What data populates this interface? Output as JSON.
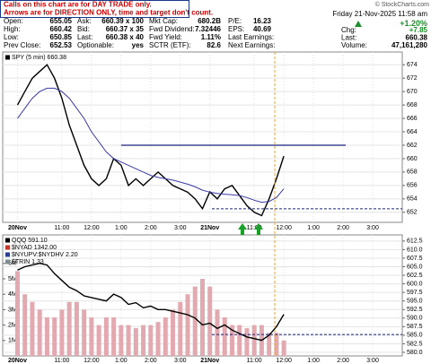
{
  "notice": [
    "Calls on this chart are for DAY TRADE only.",
    "Arrows are for DIRECTION ONLY, time and target don't count."
  ],
  "watermark": "© StockCharts.com",
  "quote": {
    "columns": [
      [
        [
          "Open:",
          "655.05"
        ],
        [
          "High:",
          "660.42"
        ],
        [
          "Low:",
          "650.85"
        ],
        [
          "Prev Close:",
          "652.53"
        ]
      ],
      [
        [
          "Ask:",
          "660.39 x 100"
        ],
        [
          "Bid:",
          "660.37 x 35"
        ],
        [
          "Last:",
          "660.38 x 40"
        ],
        [
          "Optionable:",
          "yes"
        ]
      ],
      [
        [
          "Mkt Cap:",
          "680.2B"
        ],
        [
          "Fwd Dividend:",
          "7.32446"
        ],
        [
          "Fwd Yield:",
          "1.11%"
        ],
        [
          "SCTR (ETF):",
          "82.6"
        ]
      ],
      [
        [
          "P/E:",
          "16.23"
        ],
        [
          "EPS:",
          "40.69"
        ],
        [
          "Last Earnings:"
        ],
        [
          "Next Earnings:"
        ]
      ]
    ],
    "date": "Friday 21-Nov-2025 11:58 am",
    "change_pct": "+1.20%",
    "summary": [
      [
        "Chg:",
        "+7.85"
      ],
      [
        "Last:",
        "660.38"
      ],
      [
        "Volume:",
        "47,161,280"
      ]
    ]
  },
  "chart_data": [
    {
      "type": "line",
      "xlim": [
        -2,
        52
      ],
      "xticks": [
        {
          "value": 0,
          "label": "20Nov"
        },
        {
          "value": 6,
          "label": "11:00"
        },
        {
          "value": 10,
          "label": "12:00"
        },
        {
          "value": 14,
          "label": "1:00"
        },
        {
          "value": 18,
          "label": "2:00"
        },
        {
          "value": 22,
          "label": "3:00"
        },
        {
          "value": 26,
          "label": "21Nov"
        },
        {
          "value": 32,
          "label": "11:00"
        },
        {
          "value": 36,
          "label": "12:00"
        },
        {
          "value": 40,
          "label": "1:00"
        },
        {
          "value": 44,
          "label": "2:00"
        },
        {
          "value": 48,
          "label": "3:00"
        }
      ],
      "ylim": [
        650.5,
        675.9
      ],
      "yticks": [
        652,
        654,
        656,
        658,
        660,
        662,
        664,
        666,
        668,
        670,
        672,
        674
      ],
      "grid": true,
      "hlines": [
        662,
        652.53
      ],
      "series": [
        {
          "name": "SPY (5 min) 660.38",
          "color": "#000000",
          "values": [
            668,
            670,
            672,
            673,
            674,
            672,
            669,
            665,
            662,
            659,
            657,
            656,
            657,
            660,
            659,
            656,
            657,
            656,
            657,
            658,
            657,
            656,
            655.5,
            655,
            654,
            652.53,
            655.05,
            654,
            655.5,
            656,
            654.5,
            653,
            652,
            651.5,
            654,
            657,
            660.38
          ]
        },
        {
          "color": "#3b3ba8",
          "values": [
            666,
            667.5,
            669,
            670,
            670.5,
            670.5,
            670,
            669,
            667.5,
            666,
            664,
            662.5,
            661,
            660,
            659.5,
            659,
            658.5,
            658,
            657.5,
            657.2,
            657,
            656.8,
            656.5,
            656.2,
            655.8,
            655.3,
            655,
            654.8,
            654.7,
            654.6,
            654.5,
            654.2,
            653.8,
            653.5,
            653.6,
            654.2,
            655.5
          ]
        }
      ]
    },
    {
      "type": "line",
      "xlim": [
        -2,
        52
      ],
      "xticks": [
        {
          "value": 0,
          "label": "20Nov"
        },
        {
          "value": 6,
          "label": "11:00"
        },
        {
          "value": 10,
          "label": "12:00"
        },
        {
          "value": 14,
          "label": "1:00"
        },
        {
          "value": 18,
          "label": "2:00"
        },
        {
          "value": 22,
          "label": "3:00"
        },
        {
          "value": 26,
          "label": "21Nov"
        },
        {
          "value": 32,
          "label": "11:00"
        },
        {
          "value": 36,
          "label": "12:00"
        },
        {
          "value": 40,
          "label": "1:00"
        },
        {
          "value": 44,
          "label": "2:00"
        },
        {
          "value": 48,
          "label": "3:00"
        }
      ],
      "ylim": [
        578.95,
        614.3
      ],
      "yticks": [
        {
          "value": 580,
          "label": "580.0"
        },
        582.5,
        {
          "value": 585,
          "label": "585.0"
        },
        587.5,
        {
          "value": 590,
          "label": "590.0"
        },
        592.5,
        {
          "value": 595,
          "label": "595.0"
        },
        597.5,
        {
          "value": 600,
          "label": "600.0"
        },
        602.5,
        {
          "value": 605,
          "label": "605.0"
        },
        607.5,
        {
          "value": 610,
          "label": "610.0"
        },
        612.5
      ],
      "y2lim": [
        0,
        7850000
      ],
      "y2ticks": [
        {
          "value": 1000000,
          "label": "1M"
        },
        {
          "value": 2000000,
          "label": "2M"
        },
        {
          "value": 3000000,
          "label": "3M"
        },
        {
          "value": 4000000,
          "label": "4M"
        },
        {
          "value": 5000000,
          "label": "5M"
        },
        {
          "value": 6000000,
          "label": "6M"
        }
      ],
      "grid": true,
      "hlines": [
        585.2
      ],
      "indicators": [
        "$NYAD 1342.00",
        "$NYUPV:$NYDHV 2.20",
        "$TRIN 1.33"
      ],
      "series": [
        {
          "type": "bar",
          "axis": "y2",
          "color": "#e2aab0",
          "values": [
            5500000,
            4000000,
            3500000,
            3000000,
            2500000,
            2500000,
            3000000,
            3500000,
            3500000,
            3000000,
            2500000,
            2000000,
            2500000,
            2500000,
            2000000,
            2000000,
            1800000,
            2000000,
            2000000,
            2200000,
            2500000,
            3000000,
            3500000,
            4000000,
            4500000,
            5000000,
            4500000,
            3000000,
            2500000,
            2000000,
            2000000,
            1800000,
            2000000,
            2000000,
            1500000,
            1500000,
            1000000
          ]
        },
        {
          "name": "QQQ 591.10",
          "color": "#000000",
          "values": [
            604,
            605,
            605.5,
            606,
            605.5,
            603,
            601,
            599,
            598,
            596.5,
            596,
            595.5,
            595,
            597,
            596,
            594,
            594.5,
            593,
            593.5,
            592.5,
            592.5,
            592,
            591.5,
            591,
            590,
            588,
            588.5,
            587,
            588,
            586.5,
            585.5,
            584.5,
            584,
            583.5,
            585,
            587.5,
            591.1
          ]
        }
      ]
    }
  ]
}
